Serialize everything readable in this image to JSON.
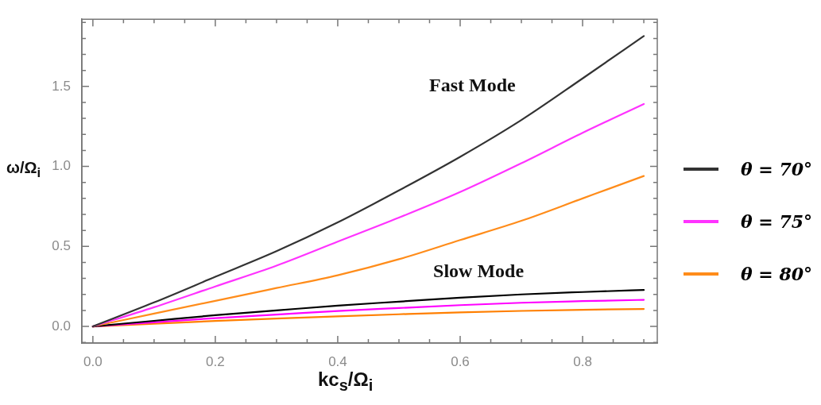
{
  "chart_data": {
    "type": "line",
    "xlabel": "kc$_{s}$/Ω$_{i}$",
    "ylabel": "ω/Ω$_{i}$",
    "legend": "right",
    "grid": false,
    "marker": "none",
    "line_style": "solid",
    "x": [
      0,
      0.1,
      0.2,
      0.3,
      0.4,
      0.5,
      0.6,
      0.7,
      0.8,
      0.9
    ],
    "series": [
      {
        "name": "θ = 70°",
        "color": "#333333",
        "values": [
          0,
          0.15,
          0.31,
          0.47,
          0.65,
          0.85,
          1.06,
          1.29,
          1.55,
          1.815
        ]
      },
      {
        "name": "θ = 75°",
        "color": "#ff33ff",
        "values": [
          0,
          0.12,
          0.25,
          0.38,
          0.53,
          0.68,
          0.84,
          1.02,
          1.21,
          1.39
        ]
      },
      {
        "name": "θ = 80°",
        "color": "#ff8c1a",
        "values": [
          0,
          0.08,
          0.16,
          0.24,
          0.32,
          0.42,
          0.54,
          0.66,
          0.8,
          0.94
        ]
      },
      {
        "color": "#000000",
        "values": [
          0,
          0.035,
          0.07,
          0.1,
          0.13,
          0.155,
          0.18,
          0.2,
          0.215,
          0.228
        ]
      },
      {
        "color": "#ff00ff",
        "values": [
          0,
          0.026,
          0.052,
          0.074,
          0.096,
          0.115,
          0.133,
          0.148,
          0.158,
          0.166
        ]
      },
      {
        "color": "#ff7f00",
        "values": [
          0,
          0.017,
          0.034,
          0.049,
          0.063,
          0.076,
          0.088,
          0.097,
          0.104,
          0.109
        ]
      }
    ],
    "xlim": [
      -0.018,
      0.922
    ],
    "xticks": [
      {
        "value": 0,
        "label": "0.0"
      },
      {
        "value": 0.05,
        "label": null
      },
      {
        "value": 0.1,
        "label": null
      },
      {
        "value": 0.15,
        "label": null
      },
      {
        "value": 0.2,
        "label": "0.2"
      },
      {
        "value": 0.25,
        "label": null
      },
      {
        "value": 0.3,
        "label": null
      },
      {
        "value": 0.35,
        "label": null
      },
      {
        "value": 0.4,
        "label": "0.4"
      },
      {
        "value": 0.45,
        "label": null
      },
      {
        "value": 0.5,
        "label": null
      },
      {
        "value": 0.55,
        "label": null
      },
      {
        "value": 0.6,
        "label": "0.6"
      },
      {
        "value": 0.65,
        "label": null
      },
      {
        "value": 0.7,
        "label": null
      },
      {
        "value": 0.75,
        "label": null
      },
      {
        "value": 0.8,
        "label": "0.8"
      },
      {
        "value": 0.85,
        "label": null
      },
      {
        "value": 0.9,
        "label": null
      }
    ],
    "ylim": [
      -0.104,
      1.92
    ],
    "yticks": [
      {
        "value": -0.1,
        "label": null
      },
      {
        "value": 0,
        "label": "0.0"
      },
      {
        "value": 0.1,
        "label": null
      },
      {
        "value": 0.2,
        "label": null
      },
      {
        "value": 0.3,
        "label": null
      },
      {
        "value": 0.4,
        "label": null
      },
      {
        "value": 0.5,
        "label": "0.5"
      },
      {
        "value": 0.6,
        "label": null
      },
      {
        "value": 0.7,
        "label": null
      },
      {
        "value": 0.8,
        "label": null
      },
      {
        "value": 0.9,
        "label": null
      },
      {
        "value": 1,
        "label": "1.0"
      },
      {
        "value": 1.1,
        "label": null
      },
      {
        "value": 1.2,
        "label": null
      },
      {
        "value": 1.3,
        "label": null
      },
      {
        "value": 1.4,
        "label": null
      },
      {
        "value": 1.5,
        "label": "1.5"
      },
      {
        "value": 1.6,
        "label": null
      },
      {
        "value": 1.7,
        "label": null
      },
      {
        "value": 1.8,
        "label": null
      },
      {
        "value": 1.9,
        "label": null
      }
    ],
    "annotations": [
      "Fast Mode",
      "Slow Mode"
    ]
  }
}
